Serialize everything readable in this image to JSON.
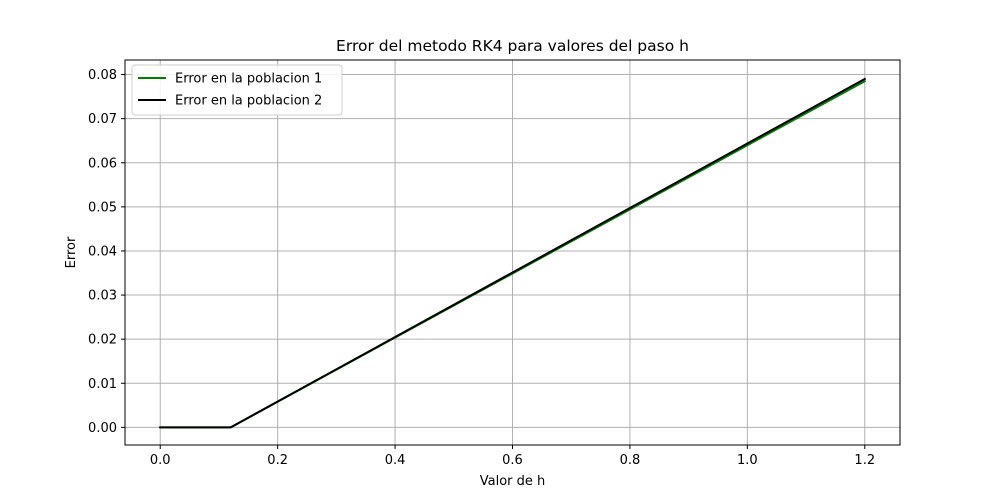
{
  "chart_data": {
    "type": "line",
    "title": "Error del metodo RK4 para valores del paso h",
    "xlabel": "Valor de h",
    "ylabel": "Error",
    "xlim": [
      -0.06,
      1.26
    ],
    "ylim": [
      -0.004,
      0.0833
    ],
    "grid": true,
    "legend_position": "top-left",
    "x_ticks": [
      0.0,
      0.2,
      0.4,
      0.6,
      0.8,
      1.0,
      1.2
    ],
    "x_tick_labels": [
      "0.0",
      "0.2",
      "0.4",
      "0.6",
      "0.8",
      "1.0",
      "1.2"
    ],
    "y_ticks": [
      0.0,
      0.01,
      0.02,
      0.03,
      0.04,
      0.05,
      0.06,
      0.07,
      0.08
    ],
    "y_tick_labels": [
      "0.00",
      "0.01",
      "0.02",
      "0.03",
      "0.04",
      "0.05",
      "0.06",
      "0.07",
      "0.08"
    ],
    "series": [
      {
        "name": "Error en la poblacion 1",
        "color": "#008000",
        "x": [
          0.0,
          0.12,
          1.2
        ],
        "y": [
          0.0,
          0.0,
          0.0785
        ]
      },
      {
        "name": "Error en la poblacion 2",
        "color": "#000000",
        "x": [
          0.0,
          0.12,
          1.2
        ],
        "y": [
          0.0,
          0.0,
          0.079
        ]
      }
    ]
  }
}
